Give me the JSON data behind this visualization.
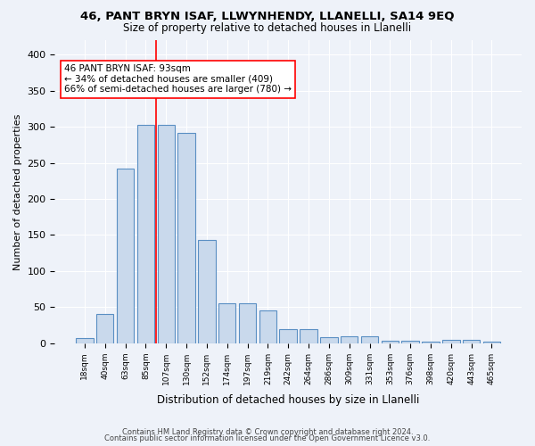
{
  "title1": "46, PANT BRYN ISAF, LLWYNHENDY, LLANELLI, SA14 9EQ",
  "title2": "Size of property relative to detached houses in Llanelli",
  "xlabel": "Distribution of detached houses by size in Llanelli",
  "ylabel": "Number of detached properties",
  "categories": [
    "18sqm",
    "40sqm",
    "63sqm",
    "85sqm",
    "107sqm",
    "130sqm",
    "152sqm",
    "174sqm",
    "197sqm",
    "219sqm",
    "242sqm",
    "264sqm",
    "286sqm",
    "309sqm",
    "331sqm",
    "353sqm",
    "376sqm",
    "398sqm",
    "420sqm",
    "443sqm",
    "465sqm"
  ],
  "values": [
    7,
    40,
    242,
    302,
    302,
    292,
    143,
    55,
    55,
    45,
    20,
    20,
    8,
    10,
    10,
    4,
    4,
    2,
    5,
    5,
    2
  ],
  "bar_color": "#c9d9ec",
  "bar_edge_color": "#5a8fc3",
  "vline_x": 4,
  "vline_color": "red",
  "annotation_text": "46 PANT BRYN ISAF: 93sqm\n← 34% of detached houses are smaller (409)\n66% of semi-detached houses are larger (780) →",
  "annotation_box_color": "white",
  "annotation_box_edge": "red",
  "ylim": [
    0,
    420
  ],
  "yticks": [
    0,
    50,
    100,
    150,
    200,
    250,
    300,
    350,
    400
  ],
  "footer1": "Contains HM Land Registry data © Crown copyright and database right 2024.",
  "footer2": "Contains public sector information licensed under the Open Government Licence v3.0.",
  "bg_color": "#eef2f9",
  "grid_color": "white"
}
